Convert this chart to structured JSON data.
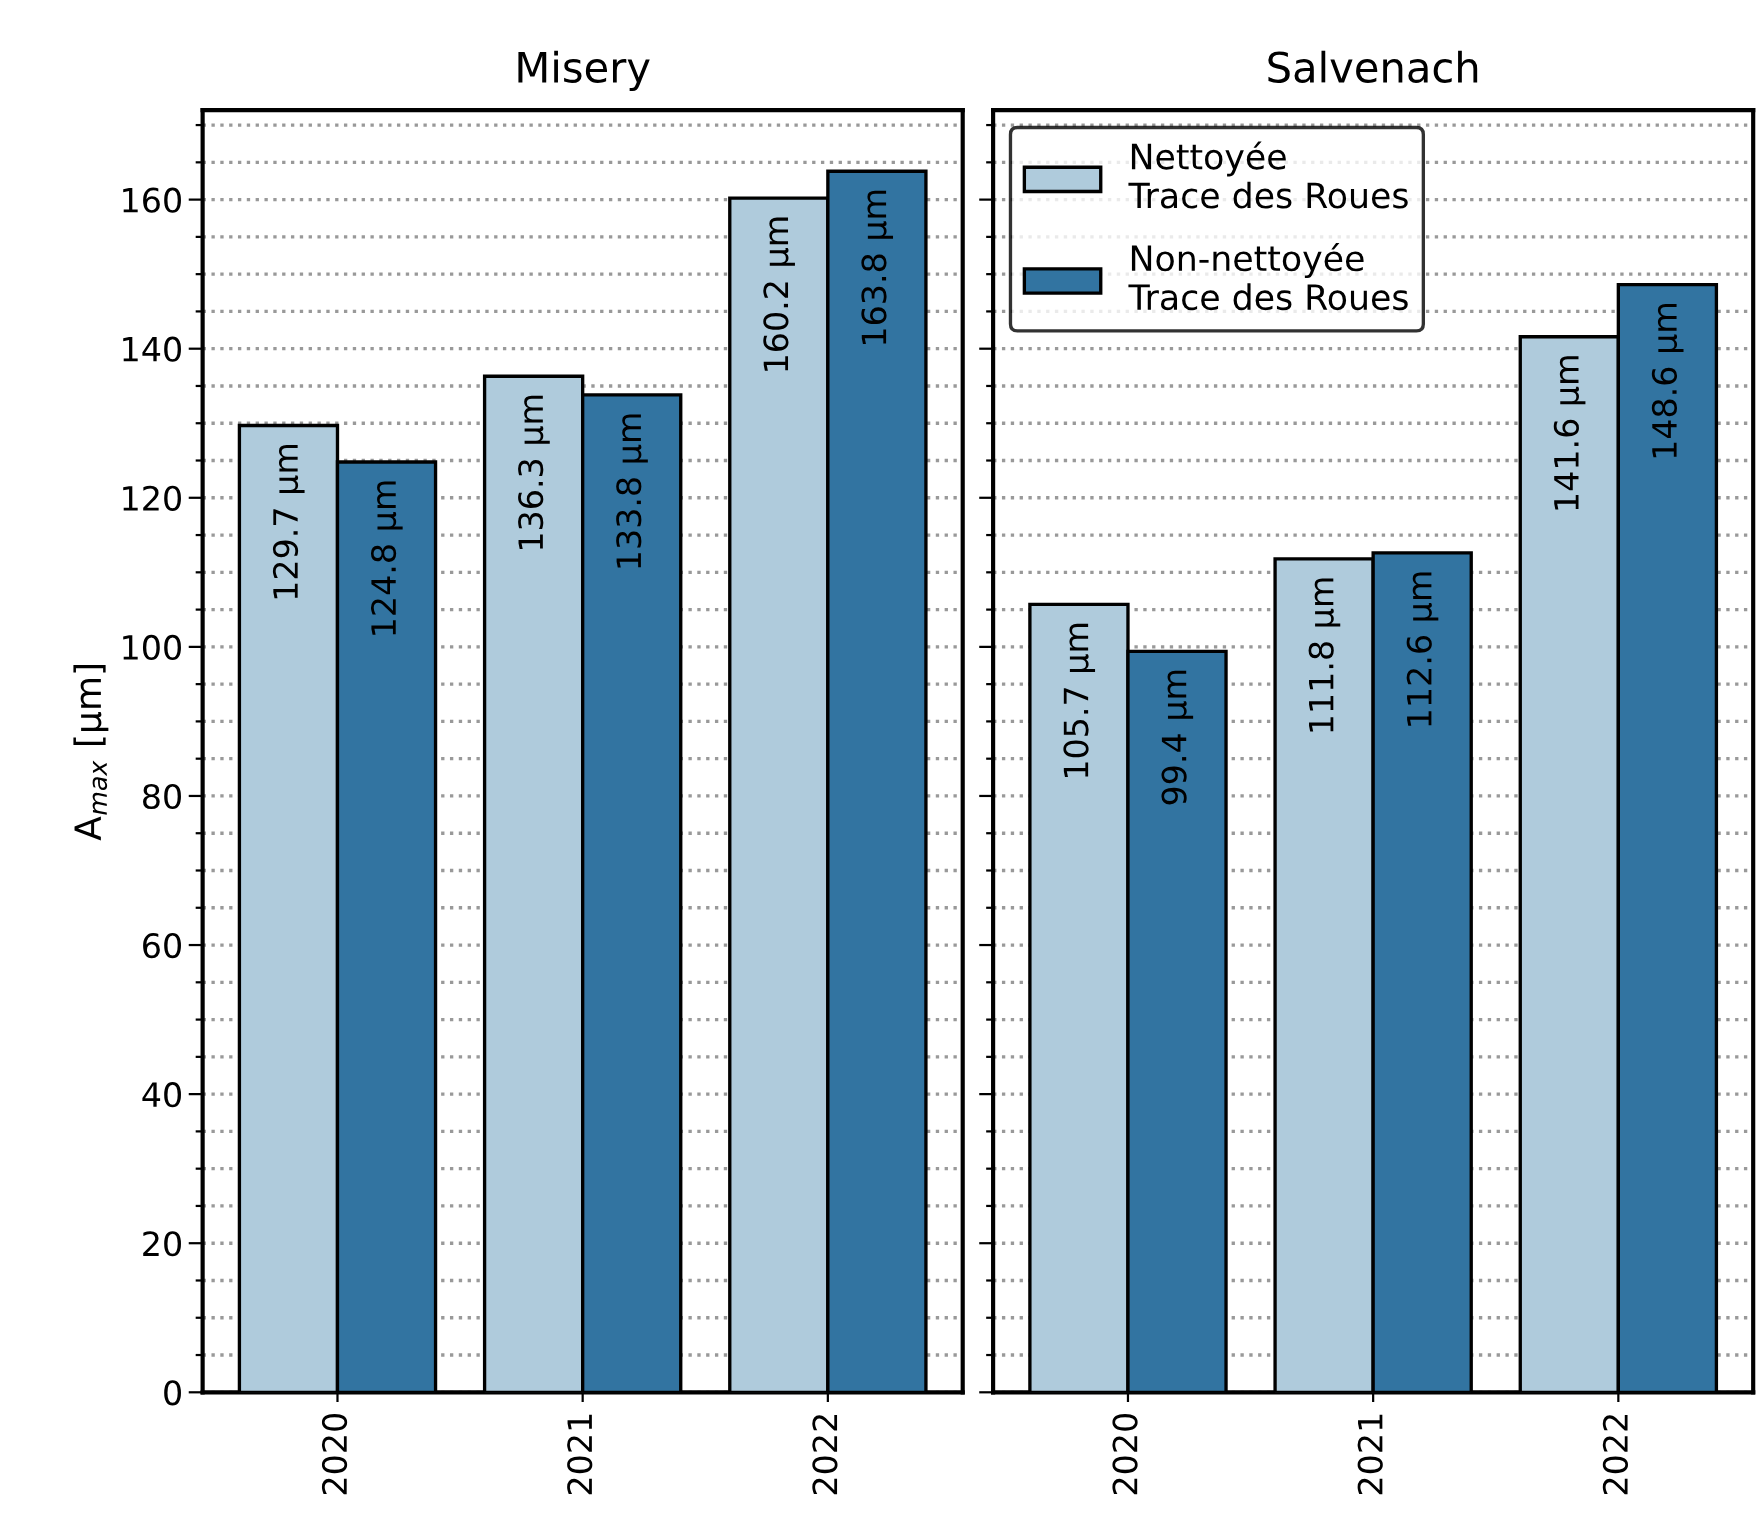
{
  "chart_data": [
    {
      "type": "bar",
      "title": "Misery",
      "ylabel": "A$_{max}$ [μm]",
      "categories": [
        "2020",
        "2021",
        "2022"
      ],
      "series": [
        {
          "color": "#afcbdc",
          "values": [
            129.7,
            136.3,
            160.2
          ],
          "value_labels": [
            "129.7 μm",
            "136.3 μm",
            "160.2 μm"
          ]
        },
        {
          "color": "#3274a1",
          "values": [
            124.8,
            133.8,
            163.8
          ],
          "value_labels": [
            "124.8 μm",
            "133.8 μm",
            "163.8 μm"
          ]
        }
      ],
      "ylim": [
        0,
        172
      ],
      "yticks": [
        0,
        {
          "value": 5,
          "label": null
        },
        {
          "value": 10,
          "label": null
        },
        {
          "value": 15,
          "label": null
        },
        20,
        {
          "value": 25,
          "label": null
        },
        {
          "value": 30,
          "label": null
        },
        {
          "value": 35,
          "label": null
        },
        40,
        {
          "value": 45,
          "label": null
        },
        {
          "value": 50,
          "label": null
        },
        {
          "value": 55,
          "label": null
        },
        60,
        {
          "value": 65,
          "label": null
        },
        {
          "value": 70,
          "label": null
        },
        {
          "value": 75,
          "label": null
        },
        80,
        {
          "value": 85,
          "label": null
        },
        {
          "value": 90,
          "label": null
        },
        {
          "value": 95,
          "label": null
        },
        100,
        {
          "value": 105,
          "label": null
        },
        {
          "value": 110,
          "label": null
        },
        {
          "value": 115,
          "label": null
        },
        120,
        {
          "value": 125,
          "label": null
        },
        {
          "value": 130,
          "label": null
        },
        {
          "value": 135,
          "label": null
        },
        140,
        {
          "value": 145,
          "label": null
        },
        {
          "value": 150,
          "label": null
        },
        {
          "value": 155,
          "label": null
        },
        160,
        {
          "value": 165,
          "label": null
        },
        {
          "value": 170,
          "label": null
        }
      ],
      "grid": "y",
      "legend": false
    },
    {
      "type": "bar",
      "title": "Salvenach",
      "categories": [
        "2020",
        "2021",
        "2022"
      ],
      "series": [
        {
          "name": "Nettoyée\nTrace des Roues",
          "color": "#afcbdc",
          "values": [
            105.7,
            111.8,
            141.6
          ],
          "value_labels": [
            "105.7 μm",
            "111.8 μm",
            "141.6 μm"
          ]
        },
        {
          "name": "Non-nettoyée\nTrace des Roues",
          "color": "#3274a1",
          "values": [
            99.4,
            112.6,
            148.6
          ],
          "value_labels": [
            "99.4 μm",
            "112.6 μm",
            "148.6 μm"
          ]
        }
      ],
      "ylim": [
        0,
        172
      ],
      "yticks": [
        0,
        {
          "value": 5,
          "label": null
        },
        {
          "value": 10,
          "label": null
        },
        {
          "value": 15,
          "label": null
        },
        20,
        {
          "value": 25,
          "label": null
        },
        {
          "value": 30,
          "label": null
        },
        {
          "value": 35,
          "label": null
        },
        40,
        {
          "value": 45,
          "label": null
        },
        {
          "value": 50,
          "label": null
        },
        {
          "value": 55,
          "label": null
        },
        60,
        {
          "value": 65,
          "label": null
        },
        {
          "value": 70,
          "label": null
        },
        {
          "value": 75,
          "label": null
        },
        80,
        {
          "value": 85,
          "label": null
        },
        {
          "value": 90,
          "label": null
        },
        {
          "value": 95,
          "label": null
        },
        100,
        {
          "value": 105,
          "label": null
        },
        {
          "value": 110,
          "label": null
        },
        {
          "value": 115,
          "label": null
        },
        120,
        {
          "value": 125,
          "label": null
        },
        {
          "value": 130,
          "label": null
        },
        {
          "value": 135,
          "label": null
        },
        140,
        {
          "value": 145,
          "label": null
        },
        {
          "value": 150,
          "label": null
        },
        {
          "value": 155,
          "label": null
        },
        160,
        {
          "value": 165,
          "label": null
        },
        {
          "value": 170,
          "label": null
        }
      ],
      "grid": "y",
      "legend": "top left",
      "tick_labels": "x"
    }
  ]
}
